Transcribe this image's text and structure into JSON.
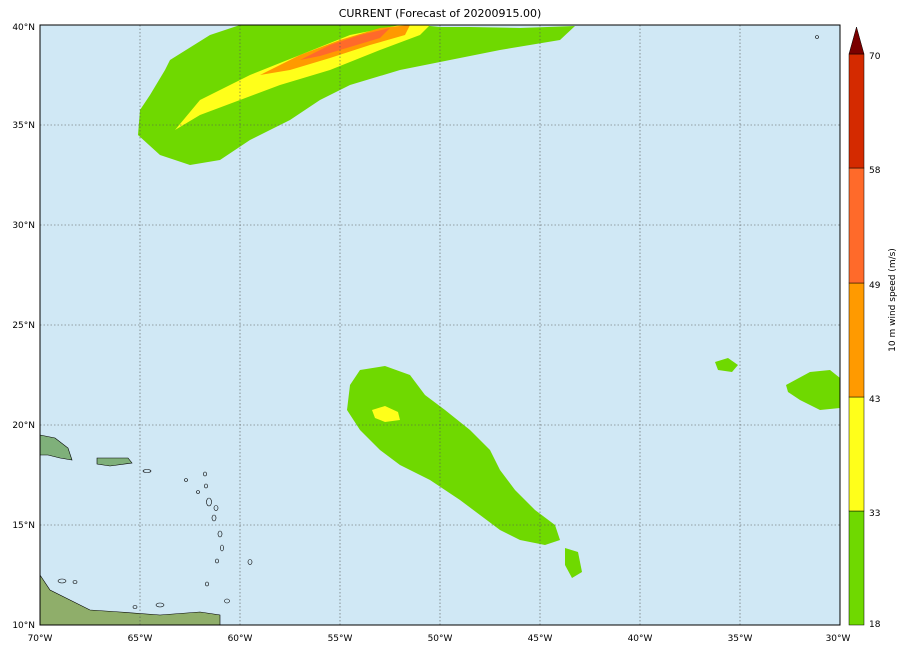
{
  "title": "CURRENT (Forecast of 20200915.00)",
  "map": {
    "lon_range": [
      -70,
      -30
    ],
    "lat_range": [
      10,
      40
    ],
    "grid": true,
    "ocean_color": "#d0e8f5",
    "lon_labels": [
      "70°W",
      "65°W",
      "60°W",
      "55°W",
      "50°W",
      "45°W",
      "40°W",
      "35°W",
      "30°W"
    ],
    "lat_labels": [
      "10°N",
      "15°N",
      "20°N",
      "25°N",
      "30°N",
      "35°N",
      "40°N"
    ]
  },
  "colorbar": {
    "label": "10 m wind speed (m/s)",
    "ticks": [
      "18",
      "33",
      "43",
      "49",
      "58",
      "70"
    ],
    "colors": [
      "#6fd900",
      "#ffff1a",
      "#ff9a00",
      "#ff6a2a",
      "#d42a00",
      "#7a0000"
    ]
  }
}
